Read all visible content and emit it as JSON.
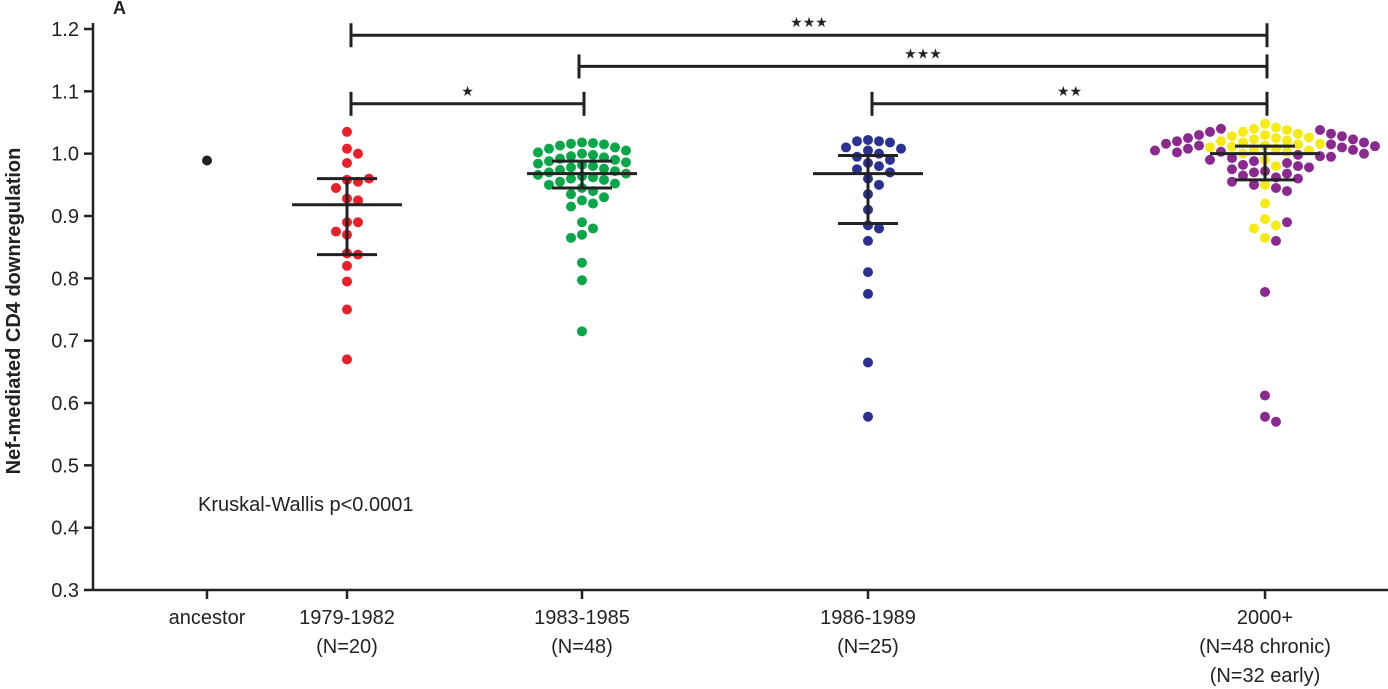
{
  "chart_data": {
    "type": "scatter",
    "panel_label": "A",
    "ylabel": "Nef-mediated CD4 downregulation",
    "xlabel": "",
    "ylim": [
      0.3,
      1.2
    ],
    "yticks": [
      "0.3",
      "0.4",
      "0.5",
      "0.6",
      "0.7",
      "0.8",
      "0.9",
      "1.0",
      "1.1",
      "1.2"
    ],
    "annotation": "Kruskal-Wallis p<0.0001",
    "categories": [
      {
        "key": "ancestor",
        "lines": [
          "ancestor"
        ]
      },
      {
        "key": "1979-1982",
        "lines": [
          "1979-1982",
          "(N=20)"
        ]
      },
      {
        "key": "1983-1985",
        "lines": [
          "1983-1985",
          "(N=48)"
        ]
      },
      {
        "key": "1986-1989",
        "lines": [
          "1986-1989",
          "(N=25)"
        ]
      },
      {
        "key": "2000+",
        "lines": [
          "2000+",
          "(N=48 chronic)",
          "(N=32 early)"
        ]
      }
    ],
    "colors": {
      "ancestor": "#222222",
      "1979-1982": "#e8202a",
      "1983-1985": "#0aa64a",
      "1986-1989": "#2b3192",
      "2000+ chronic": "#8b2a8e",
      "2000+ early": "#f5ea14"
    },
    "series": [
      {
        "group": "ancestor",
        "color_key": "ancestor",
        "values": [
          0.989
        ]
      },
      {
        "group": "1979-1982",
        "color_key": "1979-1982",
        "values": [
          1.035,
          1.008,
          1.0,
          0.985,
          0.958,
          0.955,
          0.945,
          0.928,
          0.925,
          0.89,
          0.89,
          0.875,
          0.87,
          0.84,
          0.838,
          0.82,
          0.795,
          0.75,
          0.67,
          0.96
        ]
      },
      {
        "group": "1983-1985",
        "color_key": "1983-1985",
        "values": [
          1.018,
          1.017,
          1.016,
          1.015,
          1.013,
          1.01,
          1.008,
          1.005,
          1.002,
          1.0,
          0.998,
          0.996,
          0.994,
          0.992,
          0.99,
          0.988,
          0.986,
          0.984,
          0.982,
          0.98,
          0.978,
          0.976,
          0.974,
          0.972,
          0.97,
          0.968,
          0.966,
          0.964,
          0.962,
          0.96,
          0.958,
          0.955,
          0.952,
          0.95,
          0.945,
          0.94,
          0.935,
          0.93,
          0.925,
          0.92,
          0.915,
          0.89,
          0.88,
          0.87,
          0.865,
          0.825,
          0.797,
          0.715
        ]
      },
      {
        "group": "1986-1989",
        "color_key": "1986-1989",
        "values": [
          1.022,
          1.02,
          1.02,
          1.018,
          1.01,
          1.008,
          1.005,
          1.0,
          0.995,
          0.99,
          0.985,
          0.98,
          0.975,
          0.97,
          0.96,
          0.95,
          0.935,
          0.91,
          0.885,
          0.88,
          0.86,
          0.81,
          0.775,
          0.665,
          0.578
        ]
      },
      {
        "group": "2000+ early",
        "color_key": "2000+ early",
        "values": [
          1.048,
          1.042,
          1.04,
          1.038,
          1.035,
          1.032,
          1.03,
          1.028,
          1.026,
          1.025,
          1.023,
          1.021,
          1.02,
          1.018,
          1.016,
          1.015,
          1.013,
          1.011,
          1.01,
          1.008,
          1.006,
          1.005,
          1.003,
          1.0,
          0.99,
          0.98,
          0.95,
          0.92,
          0.895,
          0.885,
          0.88,
          0.865
        ]
      },
      {
        "group": "2000+ chronic",
        "color_key": "2000+ chronic",
        "values": [
          1.04,
          1.038,
          1.035,
          1.032,
          1.03,
          1.028,
          1.025,
          1.023,
          1.02,
          1.018,
          1.016,
          1.015,
          1.013,
          1.012,
          1.01,
          1.008,
          1.006,
          1.005,
          1.003,
          1.002,
          1.0,
          0.998,
          0.996,
          0.995,
          0.993,
          0.99,
          0.988,
          0.985,
          0.982,
          0.98,
          0.978,
          0.975,
          0.972,
          0.97,
          0.968,
          0.965,
          0.962,
          0.96,
          0.955,
          0.95,
          0.945,
          0.94,
          0.89,
          0.86,
          0.778,
          0.612,
          0.578,
          0.57
        ]
      }
    ],
    "summary_bars": [
      {
        "group": "1979-1982",
        "median": 0.918,
        "q1": 0.838,
        "q3": 0.96
      },
      {
        "group": "1983-1985",
        "median": 0.968,
        "q1": 0.945,
        "q3": 0.988
      },
      {
        "group": "1986-1989",
        "median": 0.968,
        "q1": 0.888,
        "q3": 0.997
      },
      {
        "group": "2000+",
        "median": 1.0,
        "q1": 0.958,
        "q3": 1.012
      }
    ],
    "significance": [
      {
        "from": "1979-1982",
        "to": "2000+",
        "y": 1.19,
        "label": "★★★"
      },
      {
        "from": "1983-1985",
        "to": "2000+",
        "y": 1.14,
        "label": "★★★"
      },
      {
        "from": "1979-1982",
        "to": "1983-1985",
        "y": 1.08,
        "label": "★"
      },
      {
        "from": "1986-1989",
        "to": "2000+",
        "y": 1.08,
        "label": "★★"
      }
    ]
  }
}
